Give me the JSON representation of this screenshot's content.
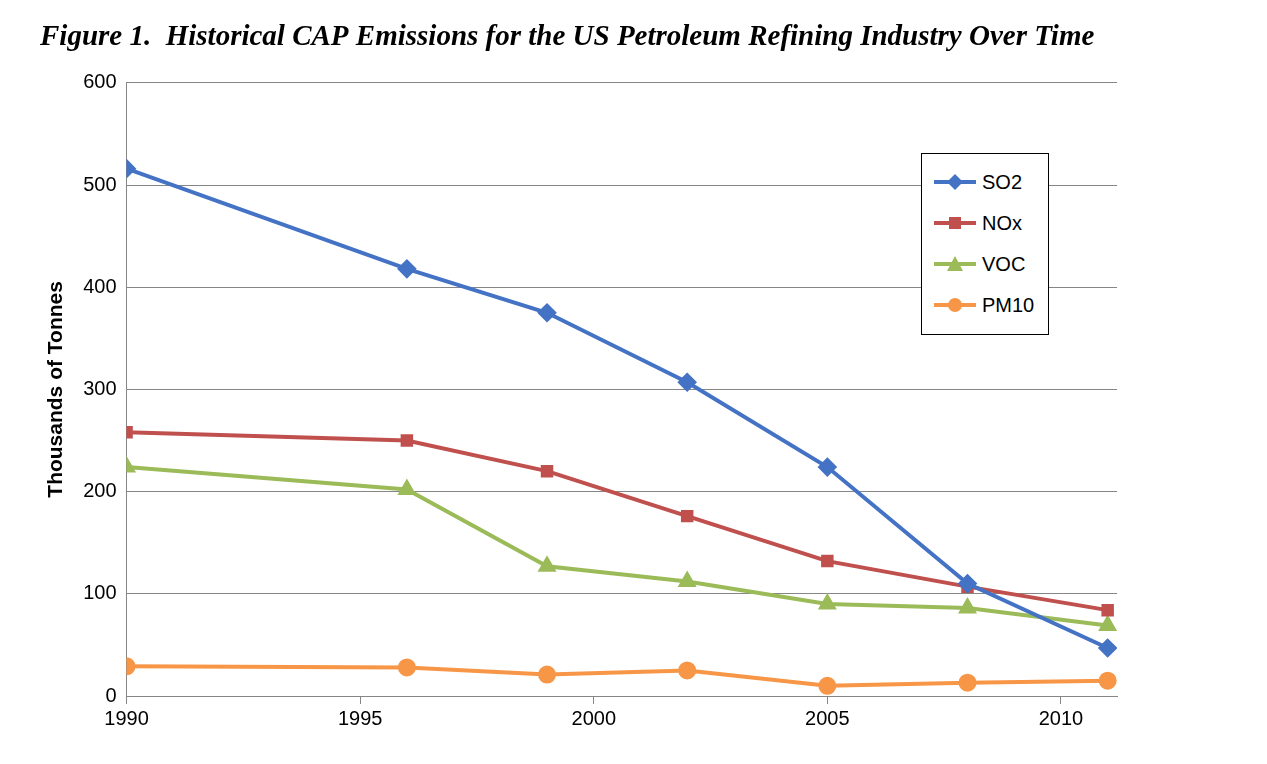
{
  "chart_data": {
    "type": "line",
    "title": "Figure 1.  Historical CAP Emissions for the US Petroleum Refining Industry Over Time",
    "y_label": "Thousands of Tonnes",
    "x": [
      1990,
      1996,
      1999,
      2002,
      2005,
      2008,
      2011
    ],
    "series": [
      {
        "name": "SO2",
        "color": "#4472c4",
        "marker": "diamond",
        "values": [
          516,
          418,
          375,
          307,
          224,
          110,
          47
        ]
      },
      {
        "name": "NOx",
        "color": "#c0504d",
        "marker": "square",
        "values": [
          258,
          250,
          220,
          176,
          132,
          107,
          84
        ]
      },
      {
        "name": "VOC",
        "color": "#9bbb59",
        "marker": "triangle",
        "values": [
          224,
          202,
          127,
          112,
          90,
          86,
          69
        ]
      },
      {
        "name": "PM10",
        "color": "#f79646",
        "marker": "circle",
        "values": [
          29,
          28,
          21,
          25,
          10,
          13,
          15
        ]
      }
    ],
    "xlim": [
      1990,
      2011.2
    ],
    "xticks": [
      1990,
      1995,
      2000,
      2005,
      2010
    ],
    "ylim": [
      0,
      600
    ],
    "yticks": [
      0,
      100,
      200,
      300,
      400,
      500,
      600
    ],
    "grid": true,
    "legend": "upper right"
  }
}
